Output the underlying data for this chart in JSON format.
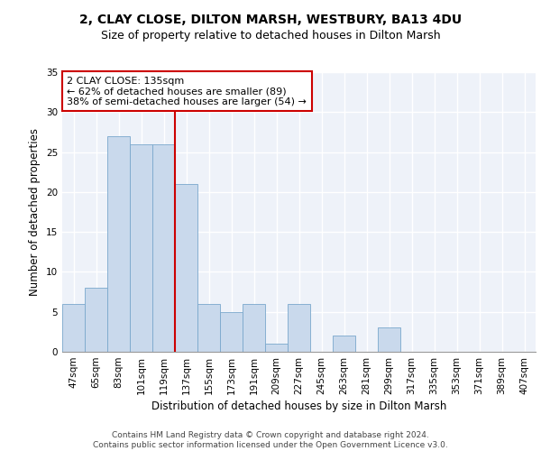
{
  "title_line1": "2, CLAY CLOSE, DILTON MARSH, WESTBURY, BA13 4DU",
  "title_line2": "Size of property relative to detached houses in Dilton Marsh",
  "xlabel": "Distribution of detached houses by size in Dilton Marsh",
  "ylabel": "Number of detached properties",
  "categories": [
    "47sqm",
    "65sqm",
    "83sqm",
    "101sqm",
    "119sqm",
    "137sqm",
    "155sqm",
    "173sqm",
    "191sqm",
    "209sqm",
    "227sqm",
    "245sqm",
    "263sqm",
    "281sqm",
    "299sqm",
    "317sqm",
    "335sqm",
    "353sqm",
    "371sqm",
    "389sqm",
    "407sqm"
  ],
  "values": [
    6,
    8,
    27,
    26,
    26,
    21,
    6,
    5,
    6,
    1,
    6,
    0,
    2,
    0,
    3,
    0,
    0,
    0,
    0,
    0,
    0
  ],
  "bar_color": "#c9d9ec",
  "bar_edge_color": "#7aa8cc",
  "annotation_text": "2 CLAY CLOSE: 135sqm\n← 62% of detached houses are smaller (89)\n38% of semi-detached houses are larger (54) →",
  "annotation_box_color": "#ffffff",
  "annotation_box_edge_color": "#cc0000",
  "vline_color": "#cc0000",
  "ylim": [
    0,
    35
  ],
  "yticks": [
    0,
    5,
    10,
    15,
    20,
    25,
    30,
    35
  ],
  "footer_line1": "Contains HM Land Registry data © Crown copyright and database right 2024.",
  "footer_line2": "Contains public sector information licensed under the Open Government Licence v3.0.",
  "bg_color": "#eef2f9",
  "grid_color": "#ffffff",
  "title_fontsize": 10,
  "subtitle_fontsize": 9,
  "axis_label_fontsize": 8.5,
  "tick_fontsize": 7.5,
  "annotation_fontsize": 8,
  "footer_fontsize": 6.5,
  "vline_position": 4.5
}
